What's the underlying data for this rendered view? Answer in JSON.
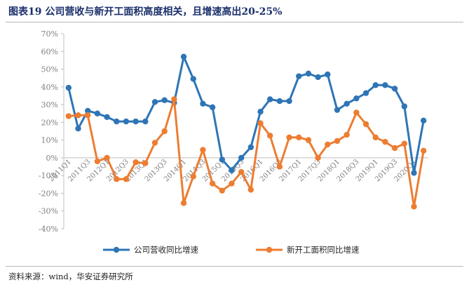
{
  "title": "图表19  公司营收与新开工面积高度相关，且增速高出20-25%",
  "source": "资料来源：wind，华安证券研究所",
  "colors": {
    "series_1": "#2E75B6",
    "series_2": "#ED7D31",
    "axis": "#bfbfbf",
    "label": "#7f7f7f"
  },
  "chart_data": {
    "type": "line",
    "ylim": [
      -0.4,
      0.7
    ],
    "yticks": [
      "70%",
      "60%",
      "50%",
      "40%",
      "30%",
      "20%",
      "10%",
      "0%",
      "-10%",
      "-20%",
      "-30%",
      "-40%"
    ],
    "ytick_values": [
      0.7,
      0.6,
      0.5,
      0.4,
      0.3,
      0.2,
      0.1,
      0,
      -0.1,
      -0.2,
      -0.3,
      -0.4
    ],
    "x": [
      "2011Q1",
      "2011Q2",
      "2011Q3",
      "2011Q4",
      "2012Q1",
      "2012Q2",
      "2012Q3",
      "2012Q4",
      "2013Q1",
      "2013Q2",
      "2013Q3",
      "2013Q4",
      "2014Q1",
      "2014Q2",
      "2014Q3",
      "2014Q4",
      "2015Q1",
      "2015Q2",
      "2015Q3",
      "2015Q4",
      "2016Q1",
      "2016Q2",
      "2016Q3",
      "2016Q4",
      "2017Q1",
      "2017Q2",
      "2017Q3",
      "2017Q4",
      "2018Q1",
      "2018Q2",
      "2018Q3",
      "2018Q4",
      "2019Q1",
      "2019Q2",
      "2019Q3",
      "2019Q4",
      "2020Q1",
      "2020Q2"
    ],
    "xtick_labels": [
      "2011Q1",
      "2011Q3",
      "2012Q1",
      "2012Q3",
      "2013Q1",
      "2013Q3",
      "2014Q1",
      "2014Q3",
      "2015Q1",
      "2015Q3",
      "2016Q1",
      "2016Q3",
      "2017Q1",
      "2017Q3",
      "2018Q1",
      "2018Q3",
      "2019Q1",
      "2019Q3",
      "2020Q1"
    ],
    "series": [
      {
        "name": "公司营收同比增速",
        "values": [
          0.395,
          0.165,
          0.265,
          0.25,
          0.23,
          0.205,
          0.205,
          0.205,
          0.205,
          0.315,
          0.325,
          0.31,
          0.57,
          0.445,
          0.305,
          0.285,
          -0.01,
          -0.07,
          0.0,
          0.06,
          0.26,
          0.33,
          0.32,
          0.32,
          0.46,
          0.475,
          0.455,
          0.47,
          0.27,
          0.305,
          0.335,
          0.365,
          0.41,
          0.41,
          0.39,
          0.29,
          -0.085,
          0.21
        ]
      },
      {
        "name": "新开工面积同比增速",
        "values": [
          0.235,
          0.24,
          0.24,
          -0.02,
          0.0,
          -0.12,
          -0.12,
          -0.025,
          -0.03,
          0.085,
          0.15,
          0.33,
          -0.255,
          -0.105,
          0.045,
          -0.145,
          -0.185,
          -0.145,
          -0.08,
          -0.18,
          0.195,
          0.125,
          -0.05,
          0.115,
          0.115,
          0.1,
          0.0,
          0.075,
          0.095,
          0.13,
          0.255,
          0.19,
          0.115,
          0.09,
          0.055,
          0.08,
          -0.275,
          0.04
        ]
      }
    ]
  }
}
